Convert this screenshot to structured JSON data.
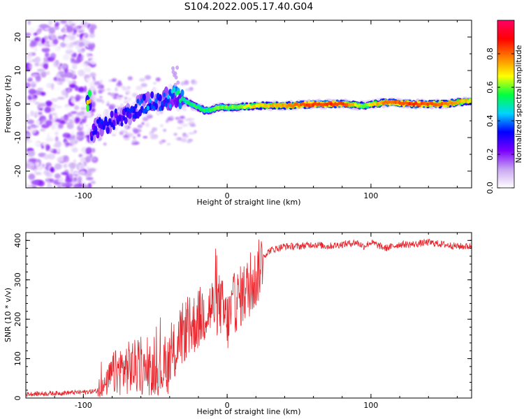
{
  "figure_title": "S104.2022.005.17.40.G04",
  "chart_data": [
    {
      "type": "heatmap",
      "name": "spectrogram",
      "xlabel": "Height of straight line (km)",
      "ylabel": "Frequency (Hz)",
      "xlim": [
        -140,
        170
      ],
      "ylim": [
        -25,
        25
      ],
      "xticks": [
        -100,
        0,
        100
      ],
      "yticks": [
        -20,
        -10,
        0,
        10,
        20
      ],
      "colorbar": {
        "label": "Normalized spectral amplitude",
        "range": [
          0,
          1
        ],
        "ticks": [
          "0.0",
          "0.2",
          "0.4",
          "0.6",
          "0.8"
        ],
        "colormap": [
          "#ffffff",
          "#c9a6f2",
          "#7a00ff",
          "#0000ff",
          "#00d5ff",
          "#00ff40",
          "#ffff00",
          "#ff8000",
          "#ff0000",
          "#ff0066"
        ]
      },
      "signal_track": [
        {
          "x": -95,
          "y": -8,
          "amp": 0.3
        },
        {
          "x": -85,
          "y": -6,
          "amp": 0.35
        },
        {
          "x": -75,
          "y": -4,
          "amp": 0.3
        },
        {
          "x": -65,
          "y": -2,
          "amp": 0.35
        },
        {
          "x": -55,
          "y": 1,
          "amp": 0.4
        },
        {
          "x": -45,
          "y": 1,
          "amp": 0.35
        },
        {
          "x": -35,
          "y": 2.5,
          "amp": 0.5
        },
        {
          "x": -25,
          "y": 0,
          "amp": 0.55
        },
        {
          "x": -15,
          "y": -2,
          "amp": 0.55
        },
        {
          "x": -5,
          "y": -1,
          "amp": 0.6
        },
        {
          "x": 5,
          "y": -1,
          "amp": 0.6
        },
        {
          "x": 20,
          "y": -0.5,
          "amp": 0.7
        },
        {
          "x": 40,
          "y": -0.5,
          "amp": 0.75
        },
        {
          "x": 60,
          "y": 0,
          "amp": 0.85
        },
        {
          "x": 80,
          "y": 0,
          "amp": 0.85
        },
        {
          "x": 95,
          "y": -0.5,
          "amp": 0.6
        },
        {
          "x": 110,
          "y": 0.5,
          "amp": 0.8
        },
        {
          "x": 130,
          "y": 0,
          "amp": 0.85
        },
        {
          "x": 150,
          "y": 0,
          "amp": 0.8
        },
        {
          "x": 170,
          "y": 1,
          "amp": 0.7
        }
      ]
    },
    {
      "type": "line",
      "name": "snr",
      "xlabel": "Height of straight line (km)",
      "ylabel": "SNR (10 * v/v)",
      "xlim": [
        -140,
        170
      ],
      "ylim": [
        0,
        420
      ],
      "xticks": [
        -100,
        0,
        100
      ],
      "yticks": [
        0,
        100,
        200,
        300,
        400
      ],
      "line_color": "#e8242b",
      "x": [
        -140,
        -120,
        -100,
        -90,
        -85,
        -80,
        -75,
        -70,
        -65,
        -60,
        -55,
        -50,
        -45,
        -40,
        -35,
        -30,
        -25,
        -20,
        -15,
        -10,
        -5,
        0,
        5,
        10,
        15,
        20,
        25,
        30,
        40,
        50,
        60,
        70,
        80,
        90,
        95,
        100,
        110,
        120,
        130,
        140,
        150,
        160,
        170
      ],
      "y": [
        10,
        12,
        15,
        18,
        30,
        60,
        70,
        75,
        80,
        70,
        65,
        60,
        70,
        90,
        130,
        170,
        180,
        200,
        220,
        230,
        240,
        190,
        240,
        260,
        280,
        300,
        360,
        375,
        385,
        385,
        390,
        385,
        390,
        395,
        385,
        395,
        380,
        390,
        390,
        395,
        390,
        385,
        385
      ]
    }
  ]
}
